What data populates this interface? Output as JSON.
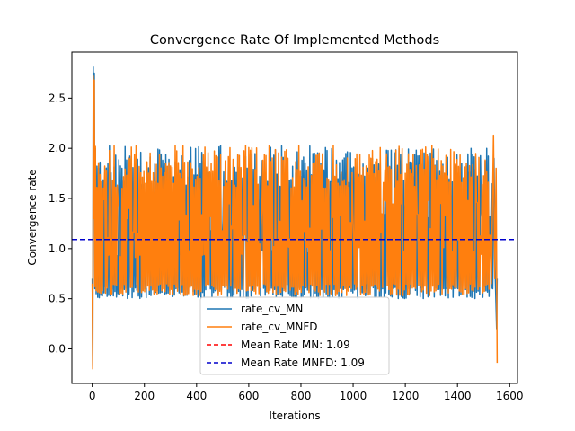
{
  "chart_data": {
    "type": "line",
    "title": "Convergence Rate Of Implemented Methods",
    "xlabel": "Iterations",
    "ylabel": "Convergence rate",
    "xlim": [
      -78,
      1630
    ],
    "ylim": [
      -0.345,
      2.96
    ],
    "xticks": [
      0,
      200,
      400,
      600,
      800,
      1000,
      1200,
      1400,
      1600
    ],
    "xtick_labels": [
      "0",
      "200",
      "400",
      "600",
      "800",
      "1000",
      "1200",
      "1400",
      "1600"
    ],
    "yticks": [
      0.0,
      0.5,
      1.0,
      1.5,
      2.0,
      2.5
    ],
    "ytick_labels": [
      "0.0",
      "0.5",
      "1.0",
      "1.5",
      "2.0",
      "2.5"
    ],
    "grid": false,
    "legend_position": "lower-center",
    "series": [
      {
        "name": "rate_cv_MN",
        "color": "#1f77b4",
        "style": "solid",
        "points": [
          [
            0,
            0.7
          ],
          [
            2,
            -0.18
          ],
          [
            4,
            2.81
          ],
          [
            6,
            1.4
          ],
          [
            8,
            2.75
          ],
          [
            10,
            0.6
          ],
          [
            12,
            2.0
          ],
          [
            15,
            0.55
          ],
          [
            1535,
            0.6
          ],
          [
            1540,
            1.9
          ],
          [
            1545,
            0.7
          ],
          [
            1550,
            0.2
          ],
          [
            1552,
            0.7
          ]
        ],
        "oscillation": {
          "from": 15,
          "to": 1535,
          "step": 3,
          "low": [
            0.5,
            0.62
          ],
          "high": [
            1.62,
            2.03
          ]
        }
      },
      {
        "name": "rate_cv_MNFD",
        "color": "#ff7f0e",
        "style": "solid",
        "points": [
          [
            0,
            0.65
          ],
          [
            2,
            -0.2
          ],
          [
            4,
            2.72
          ],
          [
            6,
            1.3
          ],
          [
            8,
            2.68
          ],
          [
            10,
            0.62
          ],
          [
            12,
            2.02
          ],
          [
            15,
            0.58
          ],
          [
            1530,
            0.65
          ],
          [
            1538,
            2.13
          ],
          [
            1543,
            0.7
          ],
          [
            1548,
            1.8
          ],
          [
            1552,
            -0.14
          ]
        ],
        "oscillation": {
          "from": 15,
          "to": 1530,
          "step": 3,
          "low": [
            0.53,
            0.65
          ],
          "high": [
            1.6,
            2.03
          ]
        }
      }
    ],
    "reference_lines": [
      {
        "name": "Mean Rate MN: 1.09",
        "color": "#ff0000",
        "style": "dashed",
        "y": 1.09
      },
      {
        "name": "Mean Rate MNFD: 1.09",
        "color": "#0000cc",
        "style": "dashed",
        "y": 1.09
      }
    ]
  }
}
